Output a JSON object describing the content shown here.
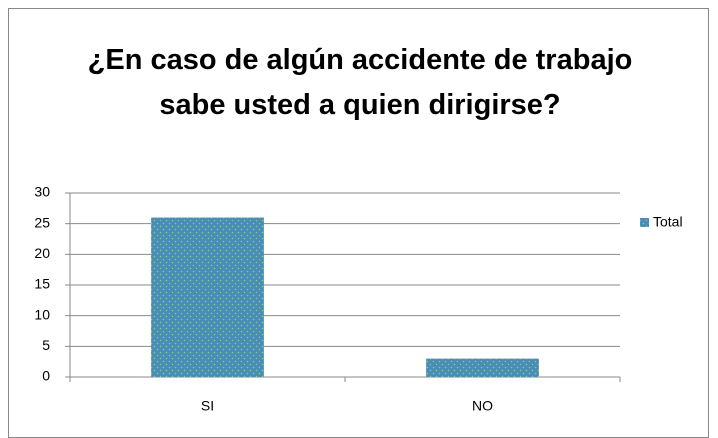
{
  "chart_data": {
    "type": "bar",
    "title": "¿En caso de algún accidente de trabajo sabe usted a quien dirigirse?",
    "categories": [
      "SI",
      "NO"
    ],
    "series": [
      {
        "name": "Total",
        "color": "#4a8cb8",
        "values": [
          26,
          3
        ]
      }
    ],
    "ylim": [
      0,
      30
    ],
    "yticks": [
      0,
      5,
      10,
      15,
      20,
      25,
      30
    ],
    "grid": true,
    "legend": "right"
  }
}
